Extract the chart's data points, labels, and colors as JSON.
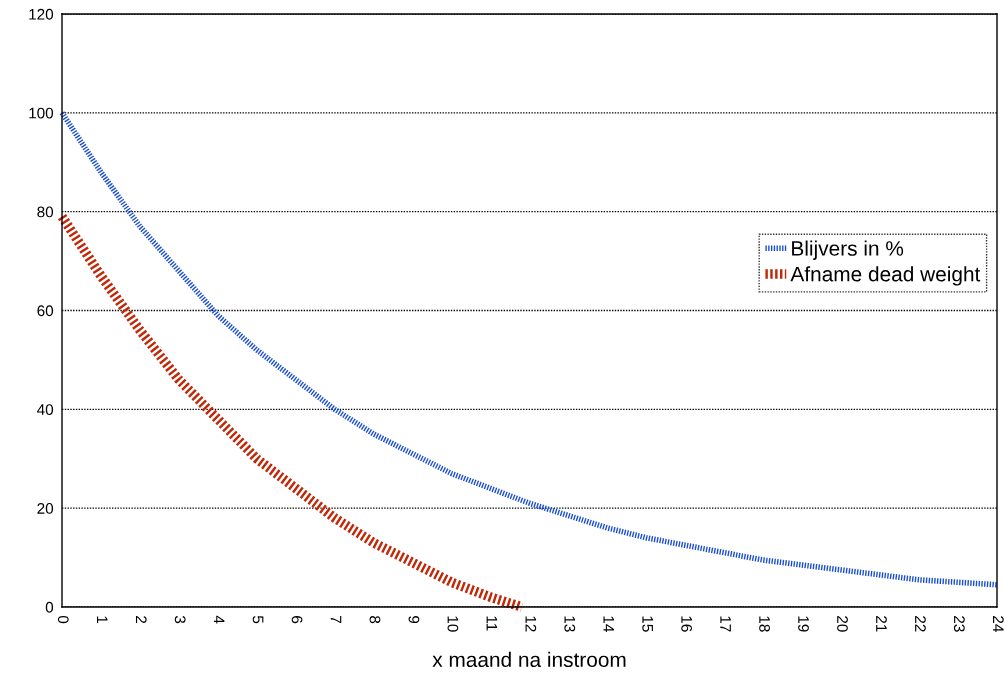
{
  "chart_data": {
    "type": "line",
    "xlabel": "x maand na instroom",
    "series": [
      {
        "name": "Blijvers in %",
        "color": "#1a4fd0",
        "x": [
          0,
          1,
          2,
          3,
          4,
          5,
          6,
          7,
          8,
          9,
          10,
          11,
          12,
          13,
          14,
          15,
          16,
          17,
          18,
          19,
          20,
          21,
          22,
          23,
          24
        ],
        "values": [
          100,
          88,
          77,
          68,
          59,
          52,
          46,
          40,
          35,
          31,
          27,
          24,
          21,
          18.5,
          16,
          14,
          12.5,
          11,
          9.5,
          8.5,
          7.5,
          6.5,
          5.5,
          5,
          4.5
        ]
      },
      {
        "name": "Afname dead weight",
        "color": "#c02808",
        "x": [
          0,
          1,
          2,
          3,
          4,
          5,
          6,
          7,
          8,
          9,
          10,
          11,
          11.8
        ],
        "values": [
          79,
          67,
          56,
          46,
          38,
          30,
          24,
          18,
          13,
          9,
          5,
          2,
          0
        ]
      }
    ],
    "xlim": [
      0,
      24
    ],
    "xticks": [
      0,
      1,
      2,
      3,
      4,
      5,
      6,
      7,
      8,
      9,
      10,
      11,
      12,
      13,
      14,
      15,
      16,
      17,
      18,
      19,
      20,
      21,
      22,
      23,
      24
    ],
    "ylim": [
      0,
      120
    ],
    "yticks": [
      0,
      20,
      40,
      60,
      80,
      100,
      120
    ],
    "grid": "y",
    "legend": "right",
    "line_style": "dotted"
  }
}
